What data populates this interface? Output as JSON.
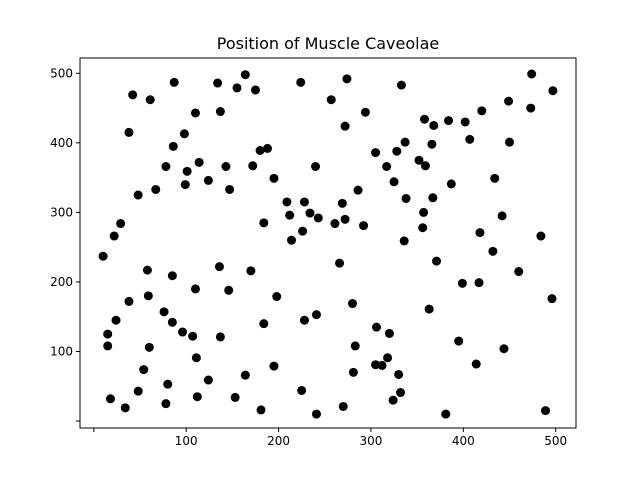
{
  "chart_data": {
    "type": "scatter",
    "title": "Position of Muscle Caveolae",
    "xlabel": "",
    "ylabel": "",
    "xlim": [
      -15,
      522
    ],
    "ylim": [
      -10,
      522
    ],
    "xticks": [
      0,
      100,
      200,
      300,
      400,
      500
    ],
    "xtick_labels": [
      "",
      "100",
      "200",
      "300",
      "400",
      "500"
    ],
    "yticks": [
      0,
      100,
      200,
      300,
      400,
      500
    ],
    "ytick_labels": [
      "",
      "100",
      "200",
      "300",
      "400",
      "500"
    ],
    "grid": false,
    "marker_color": "#000000",
    "points": [
      [
        10,
        237
      ],
      [
        15,
        125
      ],
      [
        15,
        108
      ],
      [
        18,
        32
      ],
      [
        22,
        266
      ],
      [
        24,
        145
      ],
      [
        29,
        284
      ],
      [
        34,
        19
      ],
      [
        38,
        172
      ],
      [
        38,
        415
      ],
      [
        42,
        469
      ],
      [
        48,
        43
      ],
      [
        48,
        325
      ],
      [
        54,
        74
      ],
      [
        58,
        217
      ],
      [
        59,
        180
      ],
      [
        60,
        106
      ],
      [
        61,
        462
      ],
      [
        67,
        333
      ],
      [
        76,
        157
      ],
      [
        78,
        366
      ],
      [
        78,
        25
      ],
      [
        80,
        53
      ],
      [
        85,
        209
      ],
      [
        85,
        142
      ],
      [
        86,
        395
      ],
      [
        87,
        487
      ],
      [
        96,
        128
      ],
      [
        98,
        413
      ],
      [
        99,
        340
      ],
      [
        101,
        359
      ],
      [
        107,
        122
      ],
      [
        110,
        443
      ],
      [
        110,
        190
      ],
      [
        111,
        91
      ],
      [
        112,
        35
      ],
      [
        114,
        372
      ],
      [
        124,
        346
      ],
      [
        124,
        59
      ],
      [
        134,
        486
      ],
      [
        136,
        222
      ],
      [
        137,
        445
      ],
      [
        137,
        121
      ],
      [
        143,
        366
      ],
      [
        146,
        188
      ],
      [
        147,
        333
      ],
      [
        153,
        34
      ],
      [
        155,
        479
      ],
      [
        164,
        498
      ],
      [
        164,
        66
      ],
      [
        170,
        216
      ],
      [
        172,
        367
      ],
      [
        175,
        476
      ],
      [
        180,
        389
      ],
      [
        181,
        16
      ],
      [
        184,
        285
      ],
      [
        184,
        140
      ],
      [
        188,
        392
      ],
      [
        195,
        349
      ],
      [
        195,
        79
      ],
      [
        198,
        179
      ],
      [
        209,
        315
      ],
      [
        212,
        296
      ],
      [
        214,
        260
      ],
      [
        224,
        487
      ],
      [
        225,
        44
      ],
      [
        226,
        273
      ],
      [
        228,
        145
      ],
      [
        228,
        315
      ],
      [
        234,
        299
      ],
      [
        240,
        366
      ],
      [
        241,
        10
      ],
      [
        241,
        153
      ],
      [
        243,
        292
      ],
      [
        257,
        462
      ],
      [
        261,
        284
      ],
      [
        266,
        227
      ],
      [
        269,
        313
      ],
      [
        270,
        21
      ],
      [
        272,
        424
      ],
      [
        272,
        290
      ],
      [
        274,
        492
      ],
      [
        280,
        169
      ],
      [
        281,
        70
      ],
      [
        283,
        108
      ],
      [
        286,
        332
      ],
      [
        292,
        281
      ],
      [
        294,
        444
      ],
      [
        305,
        386
      ],
      [
        305,
        81
      ],
      [
        306,
        135
      ],
      [
        312,
        80
      ],
      [
        317,
        366
      ],
      [
        318,
        91
      ],
      [
        320,
        126
      ],
      [
        324,
        30
      ],
      [
        325,
        344
      ],
      [
        328,
        388
      ],
      [
        330,
        67
      ],
      [
        332,
        41
      ],
      [
        333,
        483
      ],
      [
        336,
        259
      ],
      [
        337,
        401
      ],
      [
        338,
        320
      ],
      [
        352,
        375
      ],
      [
        356,
        278
      ],
      [
        357,
        300
      ],
      [
        358,
        434
      ],
      [
        359,
        367
      ],
      [
        363,
        161
      ],
      [
        366,
        398
      ],
      [
        367,
        321
      ],
      [
        368,
        425
      ],
      [
        371,
        230
      ],
      [
        381,
        10
      ],
      [
        384,
        432
      ],
      [
        387,
        341
      ],
      [
        395,
        115
      ],
      [
        399,
        198
      ],
      [
        402,
        430
      ],
      [
        407,
        405
      ],
      [
        414,
        82
      ],
      [
        417,
        199
      ],
      [
        418,
        271
      ],
      [
        420,
        446
      ],
      [
        432,
        244
      ],
      [
        434,
        349
      ],
      [
        442,
        295
      ],
      [
        444,
        104
      ],
      [
        449,
        460
      ],
      [
        450,
        401
      ],
      [
        460,
        215
      ],
      [
        473,
        450
      ],
      [
        474,
        499
      ],
      [
        484,
        266
      ],
      [
        489,
        15
      ],
      [
        496,
        176
      ],
      [
        497,
        475
      ]
    ]
  }
}
